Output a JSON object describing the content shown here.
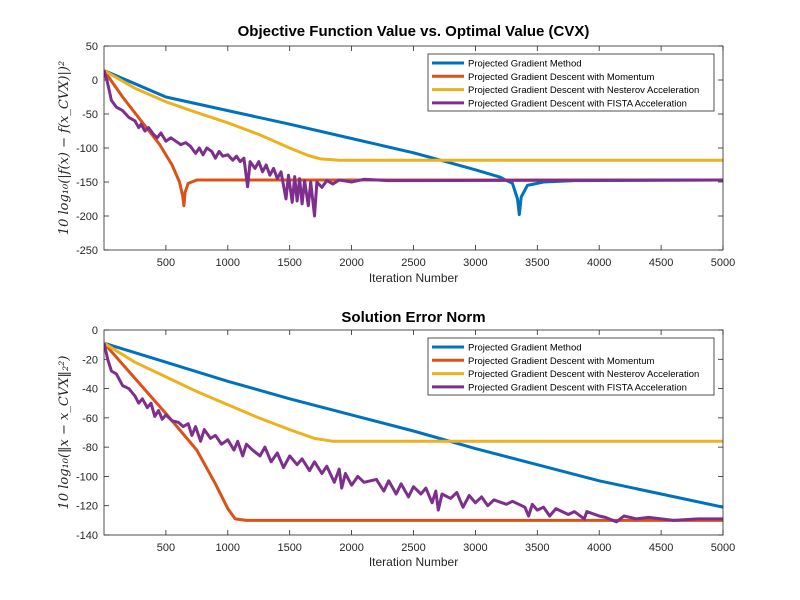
{
  "chart_data": [
    {
      "type": "line",
      "title": "Objective Function Value vs. Optimal Value (CVX)",
      "xlabel": "Iteration Number",
      "ylabel": "10 log₁₀(|f(x) − f(x_CVX)|)²",
      "xlim": [
        0,
        5000
      ],
      "ylim": [
        -250,
        50
      ],
      "xticks": [
        500,
        1000,
        1500,
        2000,
        2500,
        3000,
        3500,
        4000,
        4500,
        5000
      ],
      "yticks": [
        50,
        0,
        -50,
        -100,
        -150,
        -200,
        -250
      ],
      "grid": false,
      "legend_position": "top-right",
      "series": [
        {
          "name": "Projected Gradient Method",
          "color": "#0072BD",
          "points": [
            [
              1,
              14
            ],
            [
              500,
              -25
            ],
            [
              1000,
              -45
            ],
            [
              1500,
              -65
            ],
            [
              2000,
              -86
            ],
            [
              2500,
              -107
            ],
            [
              2700,
              -117
            ],
            [
              3000,
              -132
            ],
            [
              3200,
              -143
            ],
            [
              3300,
              -152
            ],
            [
              3340,
              -175
            ],
            [
              3355,
              -198
            ],
            [
              3370,
              -172
            ],
            [
              3420,
              -155
            ],
            [
              3550,
              -150
            ],
            [
              3800,
              -148
            ],
            [
              5000,
              -147
            ]
          ]
        },
        {
          "name": "Projected Gradient Descent with Momentum",
          "color": "#D95319",
          "points": [
            [
              1,
              14
            ],
            [
              150,
              -25
            ],
            [
              300,
              -60
            ],
            [
              450,
              -95
            ],
            [
              550,
              -125
            ],
            [
              610,
              -150
            ],
            [
              635,
              -170
            ],
            [
              645,
              -185
            ],
            [
              655,
              -165
            ],
            [
              680,
              -152
            ],
            [
              750,
              -147
            ],
            [
              5000,
              -147
            ]
          ]
        },
        {
          "name": "Projected Gradient Descent with Nesterov Acceleration",
          "color": "#EDB120",
          "points": [
            [
              1,
              14
            ],
            [
              250,
              -12
            ],
            [
              500,
              -32
            ],
            [
              750,
              -48
            ],
            [
              1000,
              -63
            ],
            [
              1250,
              -80
            ],
            [
              1500,
              -100
            ],
            [
              1650,
              -111
            ],
            [
              1750,
              -116
            ],
            [
              1900,
              -118
            ],
            [
              2100,
              -118
            ],
            [
              5000,
              -118
            ]
          ]
        },
        {
          "name": "Projected Gradient Descent with FISTA Acceleration",
          "color": "#7E2F8E",
          "points": [
            [
              1,
              14
            ],
            [
              30,
              -5
            ],
            [
              60,
              -30
            ],
            [
              100,
              -40
            ],
            [
              150,
              -45
            ],
            [
              200,
              -55
            ],
            [
              250,
              -60
            ],
            [
              280,
              -70
            ],
            [
              300,
              -65
            ],
            [
              330,
              -75
            ],
            [
              360,
              -70
            ],
            [
              400,
              -80
            ],
            [
              430,
              -85
            ],
            [
              460,
              -78
            ],
            [
              500,
              -90
            ],
            [
              540,
              -85
            ],
            [
              580,
              -90
            ],
            [
              620,
              -95
            ],
            [
              660,
              -92
            ],
            [
              700,
              -98
            ],
            [
              740,
              -108
            ],
            [
              770,
              -100
            ],
            [
              800,
              -110
            ],
            [
              830,
              -100
            ],
            [
              870,
              -105
            ],
            [
              900,
              -115
            ],
            [
              930,
              -105
            ],
            [
              960,
              -112
            ],
            [
              1000,
              -110
            ],
            [
              1040,
              -118
            ],
            [
              1070,
              -112
            ],
            [
              1100,
              -120
            ],
            [
              1130,
              -115
            ],
            [
              1160,
              -157
            ],
            [
              1180,
              -120
            ],
            [
              1220,
              -130
            ],
            [
              1250,
              -120
            ],
            [
              1280,
              -135
            ],
            [
              1310,
              -125
            ],
            [
              1340,
              -140
            ],
            [
              1370,
              -130
            ],
            [
              1400,
              -145
            ],
            [
              1430,
              -135
            ],
            [
              1470,
              -175
            ],
            [
              1490,
              -140
            ],
            [
              1520,
              -180
            ],
            [
              1540,
              -142
            ],
            [
              1560,
              -178
            ],
            [
              1580,
              -145
            ],
            [
              1600,
              -182
            ],
            [
              1620,
              -148
            ],
            [
              1650,
              -185
            ],
            [
              1670,
              -150
            ],
            [
              1700,
              -200
            ],
            [
              1720,
              -150
            ],
            [
              1760,
              -158
            ],
            [
              1800,
              -148
            ],
            [
              1850,
              -153
            ],
            [
              1900,
              -147
            ],
            [
              2000,
              -150
            ],
            [
              2100,
              -146
            ],
            [
              2300,
              -148
            ],
            [
              5000,
              -147
            ]
          ]
        }
      ]
    },
    {
      "type": "line",
      "title": "Solution Error Norm",
      "xlabel": "Iteration Number",
      "ylabel": "10 log₁₀(‖x − x_CVX‖₂²)",
      "xlim": [
        0,
        5000
      ],
      "ylim": [
        -140,
        0
      ],
      "xticks": [
        500,
        1000,
        1500,
        2000,
        2500,
        3000,
        3500,
        4000,
        4500,
        5000
      ],
      "yticks": [
        0,
        -20,
        -40,
        -60,
        -80,
        -100,
        -120,
        -140
      ],
      "grid": false,
      "legend_position": "top-right",
      "series": [
        {
          "name": "Projected Gradient Method",
          "color": "#0072BD",
          "points": [
            [
              1,
              -9
            ],
            [
              500,
              -22
            ],
            [
              1000,
              -35
            ],
            [
              1500,
              -47
            ],
            [
              2000,
              -58
            ],
            [
              2500,
              -69
            ],
            [
              3000,
              -81
            ],
            [
              3500,
              -92
            ],
            [
              4000,
              -103
            ],
            [
              4500,
              -112
            ],
            [
              5000,
              -121
            ]
          ]
        },
        {
          "name": "Projected Gradient Descent with Momentum",
          "color": "#D95319",
          "points": [
            [
              1,
              -9
            ],
            [
              250,
              -33
            ],
            [
              500,
              -57
            ],
            [
              750,
              -82
            ],
            [
              900,
              -105
            ],
            [
              1000,
              -122
            ],
            [
              1060,
              -129
            ],
            [
              1150,
              -130
            ],
            [
              5000,
              -130
            ]
          ]
        },
        {
          "name": "Projected Gradient Descent with Nesterov Acceleration",
          "color": "#EDB120",
          "points": [
            [
              1,
              -9
            ],
            [
              250,
              -22
            ],
            [
              500,
              -32
            ],
            [
              750,
              -42
            ],
            [
              1000,
              -51
            ],
            [
              1250,
              -60
            ],
            [
              1500,
              -68
            ],
            [
              1700,
              -74
            ],
            [
              1850,
              -76
            ],
            [
              2000,
              -76
            ],
            [
              5000,
              -76
            ]
          ]
        },
        {
          "name": "Projected Gradient Descent with FISTA Acceleration",
          "color": "#7E2F8E",
          "points": [
            [
              1,
              -9
            ],
            [
              30,
              -20
            ],
            [
              60,
              -28
            ],
            [
              100,
              -30
            ],
            [
              150,
              -38
            ],
            [
              200,
              -40
            ],
            [
              250,
              -45
            ],
            [
              280,
              -50
            ],
            [
              310,
              -47
            ],
            [
              350,
              -53
            ],
            [
              380,
              -50
            ],
            [
              410,
              -59
            ],
            [
              440,
              -55
            ],
            [
              470,
              -61
            ],
            [
              500,
              -58
            ],
            [
              550,
              -62
            ],
            [
              600,
              -63
            ],
            [
              640,
              -66
            ],
            [
              680,
              -64
            ],
            [
              710,
              -72
            ],
            [
              740,
              -66
            ],
            [
              780,
              -76
            ],
            [
              810,
              -68
            ],
            [
              860,
              -74
            ],
            [
              900,
              -72
            ],
            [
              950,
              -78
            ],
            [
              1000,
              -75
            ],
            [
              1050,
              -82
            ],
            [
              1080,
              -76
            ],
            [
              1120,
              -86
            ],
            [
              1150,
              -78
            ],
            [
              1200,
              -82
            ],
            [
              1260,
              -86
            ],
            [
              1300,
              -80
            ],
            [
              1350,
              -90
            ],
            [
              1400,
              -84
            ],
            [
              1450,
              -94
            ],
            [
              1500,
              -86
            ],
            [
              1560,
              -92
            ],
            [
              1600,
              -88
            ],
            [
              1660,
              -96
            ],
            [
              1700,
              -90
            ],
            [
              1760,
              -98
            ],
            [
              1800,
              -93
            ],
            [
              1860,
              -104
            ],
            [
              1900,
              -95
            ],
            [
              1920,
              -108
            ],
            [
              1950,
              -98
            ],
            [
              2000,
              -106
            ],
            [
              2050,
              -100
            ],
            [
              2100,
              -104
            ],
            [
              2200,
              -102
            ],
            [
              2260,
              -110
            ],
            [
              2300,
              -103
            ],
            [
              2360,
              -112
            ],
            [
              2400,
              -105
            ],
            [
              2460,
              -114
            ],
            [
              2500,
              -107
            ],
            [
              2560,
              -112
            ],
            [
              2600,
              -108
            ],
            [
              2650,
              -118
            ],
            [
              2680,
              -110
            ],
            [
              2700,
              -123
            ],
            [
              2730,
              -112
            ],
            [
              2800,
              -115
            ],
            [
              2850,
              -111
            ],
            [
              2900,
              -121
            ],
            [
              2950,
              -113
            ],
            [
              3000,
              -118
            ],
            [
              3050,
              -114
            ],
            [
              3100,
              -120
            ],
            [
              3150,
              -116
            ],
            [
              3250,
              -119
            ],
            [
              3300,
              -117
            ],
            [
              3400,
              -121
            ],
            [
              3430,
              -127
            ],
            [
              3460,
              -119
            ],
            [
              3500,
              -123
            ],
            [
              3550,
              -121
            ],
            [
              3600,
              -127
            ],
            [
              3650,
              -122
            ],
            [
              3750,
              -126
            ],
            [
              3800,
              -124
            ],
            [
              3880,
              -129
            ],
            [
              3900,
              -124
            ],
            [
              4000,
              -127
            ],
            [
              4050,
              -128
            ],
            [
              4140,
              -131
            ],
            [
              4200,
              -127
            ],
            [
              4300,
              -129
            ],
            [
              4400,
              -128
            ],
            [
              4600,
              -130
            ],
            [
              4800,
              -129
            ],
            [
              5000,
              -129
            ]
          ]
        }
      ]
    }
  ]
}
